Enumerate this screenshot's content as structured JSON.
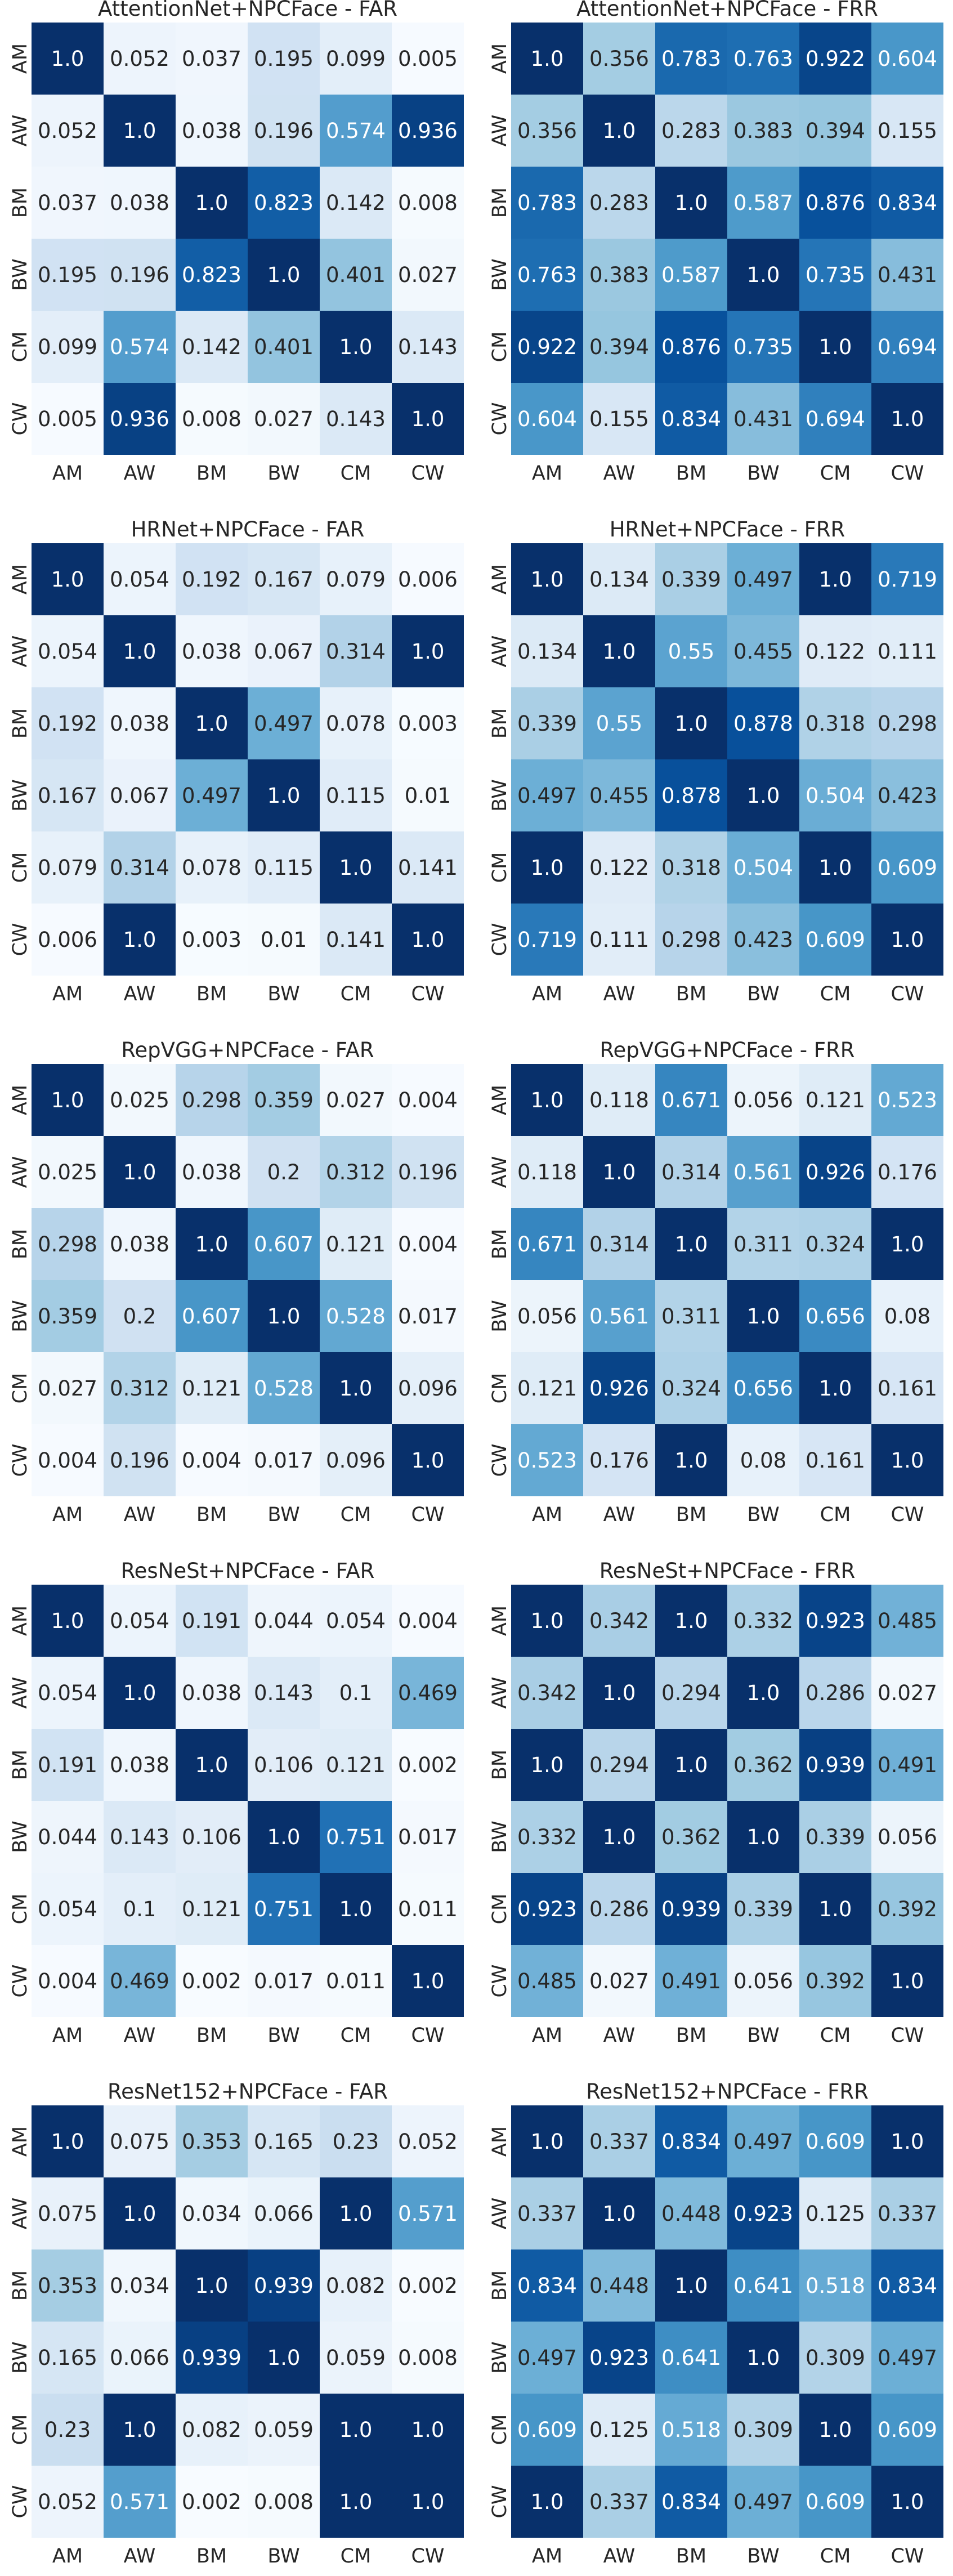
{
  "chart_data": [
    {
      "type": "heatmap",
      "title": "AttentionNet+NPCFace - FAR",
      "categories": [
        "AM",
        "AW",
        "BM",
        "BW",
        "CM",
        "CW"
      ],
      "values": [
        [
          "1.0",
          "0.052",
          "0.037",
          "0.195",
          "0.099",
          "0.005"
        ],
        [
          "0.052",
          "1.0",
          "0.038",
          "0.196",
          "0.574",
          "0.936"
        ],
        [
          "0.037",
          "0.038",
          "1.0",
          "0.823",
          "0.142",
          "0.008"
        ],
        [
          "0.195",
          "0.196",
          "0.823",
          "1.0",
          "0.401",
          "0.027"
        ],
        [
          "0.099",
          "0.574",
          "0.142",
          "0.401",
          "1.0",
          "0.143"
        ],
        [
          "0.005",
          "0.936",
          "0.008",
          "0.027",
          "0.143",
          "1.0"
        ]
      ]
    },
    {
      "type": "heatmap",
      "title": "AttentionNet+NPCFace - FRR",
      "categories": [
        "AM",
        "AW",
        "BM",
        "BW",
        "CM",
        "CW"
      ],
      "values": [
        [
          "1.0",
          "0.356",
          "0.783",
          "0.763",
          "0.922",
          "0.604"
        ],
        [
          "0.356",
          "1.0",
          "0.283",
          "0.383",
          "0.394",
          "0.155"
        ],
        [
          "0.783",
          "0.283",
          "1.0",
          "0.587",
          "0.876",
          "0.834"
        ],
        [
          "0.763",
          "0.383",
          "0.587",
          "1.0",
          "0.735",
          "0.431"
        ],
        [
          "0.922",
          "0.394",
          "0.876",
          "0.735",
          "1.0",
          "0.694"
        ],
        [
          "0.604",
          "0.155",
          "0.834",
          "0.431",
          "0.694",
          "1.0"
        ]
      ]
    },
    {
      "type": "heatmap",
      "title": "HRNet+NPCFace - FAR",
      "categories": [
        "AM",
        "AW",
        "BM",
        "BW",
        "CM",
        "CW"
      ],
      "values": [
        [
          "1.0",
          "0.054",
          "0.192",
          "0.167",
          "0.079",
          "0.006"
        ],
        [
          "0.054",
          "1.0",
          "0.038",
          "0.067",
          "0.314",
          "1.0"
        ],
        [
          "0.192",
          "0.038",
          "1.0",
          "0.497",
          "0.078",
          "0.003"
        ],
        [
          "0.167",
          "0.067",
          "0.497",
          "1.0",
          "0.115",
          "0.01"
        ],
        [
          "0.079",
          "0.314",
          "0.078",
          "0.115",
          "1.0",
          "0.141"
        ],
        [
          "0.006",
          "1.0",
          "0.003",
          "0.01",
          "0.141",
          "1.0"
        ]
      ]
    },
    {
      "type": "heatmap",
      "title": "HRNet+NPCFace - FRR",
      "categories": [
        "AM",
        "AW",
        "BM",
        "BW",
        "CM",
        "CW"
      ],
      "values": [
        [
          "1.0",
          "0.134",
          "0.339",
          "0.497",
          "1.0",
          "0.719"
        ],
        [
          "0.134",
          "1.0",
          "0.55",
          "0.455",
          "0.122",
          "0.111"
        ],
        [
          "0.339",
          "0.55",
          "1.0",
          "0.878",
          "0.318",
          "0.298"
        ],
        [
          "0.497",
          "0.455",
          "0.878",
          "1.0",
          "0.504",
          "0.423"
        ],
        [
          "1.0",
          "0.122",
          "0.318",
          "0.504",
          "1.0",
          "0.609"
        ],
        [
          "0.719",
          "0.111",
          "0.298",
          "0.423",
          "0.609",
          "1.0"
        ]
      ]
    },
    {
      "type": "heatmap",
      "title": "RepVGG+NPCFace - FAR",
      "categories": [
        "AM",
        "AW",
        "BM",
        "BW",
        "CM",
        "CW"
      ],
      "values": [
        [
          "1.0",
          "0.025",
          "0.298",
          "0.359",
          "0.027",
          "0.004"
        ],
        [
          "0.025",
          "1.0",
          "0.038",
          "0.2",
          "0.312",
          "0.196"
        ],
        [
          "0.298",
          "0.038",
          "1.0",
          "0.607",
          "0.121",
          "0.004"
        ],
        [
          "0.359",
          "0.2",
          "0.607",
          "1.0",
          "0.528",
          "0.017"
        ],
        [
          "0.027",
          "0.312",
          "0.121",
          "0.528",
          "1.0",
          "0.096"
        ],
        [
          "0.004",
          "0.196",
          "0.004",
          "0.017",
          "0.096",
          "1.0"
        ]
      ]
    },
    {
      "type": "heatmap",
      "title": "RepVGG+NPCFace - FRR",
      "categories": [
        "AM",
        "AW",
        "BM",
        "BW",
        "CM",
        "CW"
      ],
      "values": [
        [
          "1.0",
          "0.118",
          "0.671",
          "0.056",
          "0.121",
          "0.523"
        ],
        [
          "0.118",
          "1.0",
          "0.314",
          "0.561",
          "0.926",
          "0.176"
        ],
        [
          "0.671",
          "0.314",
          "1.0",
          "0.311",
          "0.324",
          "1.0"
        ],
        [
          "0.056",
          "0.561",
          "0.311",
          "1.0",
          "0.656",
          "0.08"
        ],
        [
          "0.121",
          "0.926",
          "0.324",
          "0.656",
          "1.0",
          "0.161"
        ],
        [
          "0.523",
          "0.176",
          "1.0",
          "0.08",
          "0.161",
          "1.0"
        ]
      ]
    },
    {
      "type": "heatmap",
      "title": "ResNeSt+NPCFace - FAR",
      "categories": [
        "AM",
        "AW",
        "BM",
        "BW",
        "CM",
        "CW"
      ],
      "values": [
        [
          "1.0",
          "0.054",
          "0.191",
          "0.044",
          "0.054",
          "0.004"
        ],
        [
          "0.054",
          "1.0",
          "0.038",
          "0.143",
          "0.1",
          "0.469"
        ],
        [
          "0.191",
          "0.038",
          "1.0",
          "0.106",
          "0.121",
          "0.002"
        ],
        [
          "0.044",
          "0.143",
          "0.106",
          "1.0",
          "0.751",
          "0.017"
        ],
        [
          "0.054",
          "0.1",
          "0.121",
          "0.751",
          "1.0",
          "0.011"
        ],
        [
          "0.004",
          "0.469",
          "0.002",
          "0.017",
          "0.011",
          "1.0"
        ]
      ]
    },
    {
      "type": "heatmap",
      "title": "ResNeSt+NPCFace - FRR",
      "categories": [
        "AM",
        "AW",
        "BM",
        "BW",
        "CM",
        "CW"
      ],
      "values": [
        [
          "1.0",
          "0.342",
          "1.0",
          "0.332",
          "0.923",
          "0.485"
        ],
        [
          "0.342",
          "1.0",
          "0.294",
          "1.0",
          "0.286",
          "0.027"
        ],
        [
          "1.0",
          "0.294",
          "1.0",
          "0.362",
          "0.939",
          "0.491"
        ],
        [
          "0.332",
          "1.0",
          "0.362",
          "1.0",
          "0.339",
          "0.056"
        ],
        [
          "0.923",
          "0.286",
          "0.939",
          "0.339",
          "1.0",
          "0.392"
        ],
        [
          "0.485",
          "0.027",
          "0.491",
          "0.056",
          "0.392",
          "1.0"
        ]
      ]
    },
    {
      "type": "heatmap",
      "title": "ResNet152+NPCFace - FAR",
      "categories": [
        "AM",
        "AW",
        "BM",
        "BW",
        "CM",
        "CW"
      ],
      "values": [
        [
          "1.0",
          "0.075",
          "0.353",
          "0.165",
          "0.23",
          "0.052"
        ],
        [
          "0.075",
          "1.0",
          "0.034",
          "0.066",
          "1.0",
          "0.571"
        ],
        [
          "0.353",
          "0.034",
          "1.0",
          "0.939",
          "0.082",
          "0.002"
        ],
        [
          "0.165",
          "0.066",
          "0.939",
          "1.0",
          "0.059",
          "0.008"
        ],
        [
          "0.23",
          "1.0",
          "0.082",
          "0.059",
          "1.0",
          "1.0"
        ],
        [
          "0.052",
          "0.571",
          "0.002",
          "0.008",
          "1.0",
          "1.0"
        ]
      ]
    },
    {
      "type": "heatmap",
      "title": "ResNet152+NPCFace - FRR",
      "categories": [
        "AM",
        "AW",
        "BM",
        "BW",
        "CM",
        "CW"
      ],
      "values": [
        [
          "1.0",
          "0.337",
          "0.834",
          "0.497",
          "0.609",
          "1.0"
        ],
        [
          "0.337",
          "1.0",
          "0.448",
          "0.923",
          "0.125",
          "0.337"
        ],
        [
          "0.834",
          "0.448",
          "1.0",
          "0.641",
          "0.518",
          "0.834"
        ],
        [
          "0.497",
          "0.923",
          "0.641",
          "1.0",
          "0.309",
          "0.497"
        ],
        [
          "0.609",
          "0.125",
          "0.518",
          "0.309",
          "1.0",
          "0.609"
        ],
        [
          "1.0",
          "0.337",
          "0.834",
          "0.497",
          "0.609",
          "1.0"
        ]
      ]
    }
  ],
  "colormap": "Blues",
  "colors": {
    "low": "#f7fbff",
    "high": "#08306b",
    "text_dark": "#262626",
    "text_light": "#ffffff"
  }
}
